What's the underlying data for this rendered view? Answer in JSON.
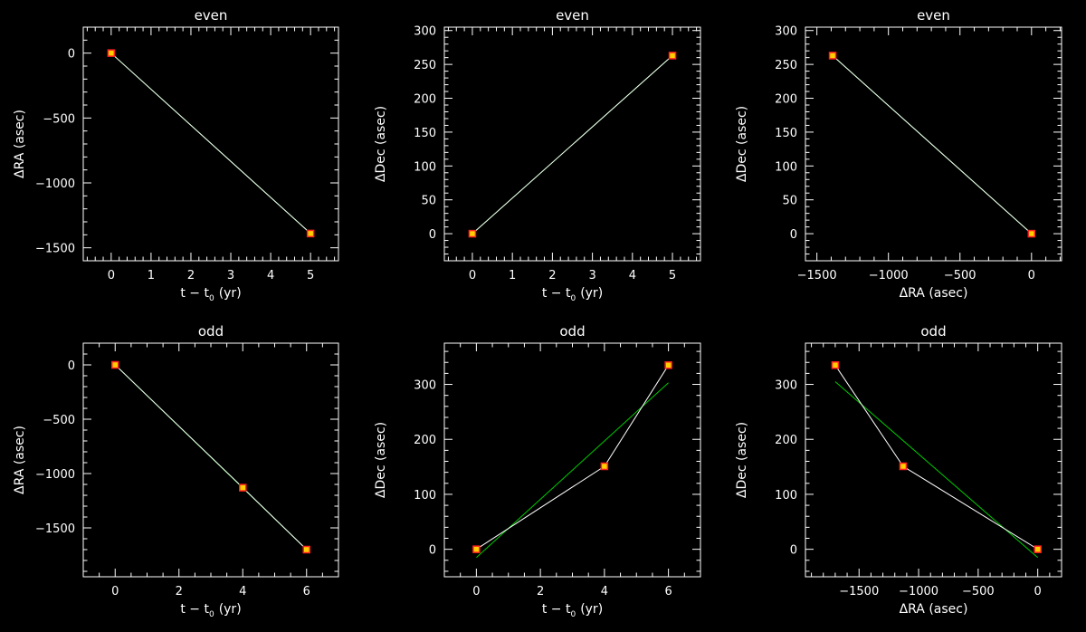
{
  "colors": {
    "background": "#000000",
    "axes": "#ffffff",
    "fit_line": "#00c800",
    "data_line": "#ffffff",
    "marker_edge": "#ff2020",
    "marker_fill": "#ffd000"
  },
  "chart_data": [
    {
      "id": "even-ra-time",
      "type": "line",
      "title": "even",
      "xlabel": "t − t",
      "xlabel_sub": "0",
      "xlabel_unit": "(yr)",
      "ylabel": "ΔRA (asec)",
      "xlim": [
        -0.7,
        5.7
      ],
      "ylim": [
        -1600,
        200
      ],
      "xticks": [
        0,
        1,
        2,
        3,
        4,
        5
      ],
      "yticks": [
        -1500,
        -1000,
        -500,
        0
      ],
      "xtick_labels": [
        "0",
        "1",
        "2",
        "3",
        "4",
        "5"
      ],
      "ytick_labels": [
        "−1500",
        "−1000",
        "−500",
        "0"
      ],
      "xminor": 5,
      "yminor": 5,
      "series": [
        {
          "style": "fit",
          "x": [
            0,
            5
          ],
          "y": [
            0,
            -1390
          ]
        },
        {
          "style": "data",
          "x": [
            0,
            5
          ],
          "y": [
            0,
            -1390
          ]
        }
      ]
    },
    {
      "id": "even-dec-time",
      "type": "line",
      "title": "even",
      "xlabel": "t − t",
      "xlabel_sub": "0",
      "xlabel_unit": "(yr)",
      "ylabel": "ΔDec (asec)",
      "xlim": [
        -0.7,
        5.7
      ],
      "ylim": [
        -40,
        305
      ],
      "xticks": [
        0,
        1,
        2,
        3,
        4,
        5
      ],
      "yticks": [
        0,
        50,
        100,
        150,
        200,
        250,
        300
      ],
      "xtick_labels": [
        "0",
        "1",
        "2",
        "3",
        "4",
        "5"
      ],
      "ytick_labels": [
        "0",
        "50",
        "100",
        "150",
        "200",
        "250",
        "300"
      ],
      "xminor": 5,
      "yminor": 5,
      "series": [
        {
          "style": "fit",
          "x": [
            0,
            5
          ],
          "y": [
            0,
            263
          ]
        },
        {
          "style": "data",
          "x": [
            0,
            5
          ],
          "y": [
            0,
            263
          ]
        }
      ]
    },
    {
      "id": "even-dec-ra",
      "type": "line",
      "title": "even",
      "xlabel": "ΔRA (asec)",
      "xlabel_sub": "",
      "xlabel_unit": "",
      "ylabel": "ΔDec (asec)",
      "xlim": [
        -1580,
        210
      ],
      "ylim": [
        -40,
        305
      ],
      "xticks": [
        -1500,
        -1000,
        -500,
        0
      ],
      "yticks": [
        0,
        50,
        100,
        150,
        200,
        250,
        300
      ],
      "xtick_labels": [
        "−1500",
        "−1000",
        "−500",
        "0"
      ],
      "ytick_labels": [
        "0",
        "50",
        "100",
        "150",
        "200",
        "250",
        "300"
      ],
      "xminor": 5,
      "yminor": 5,
      "series": [
        {
          "style": "fit",
          "x": [
            -1390,
            0
          ],
          "y": [
            263,
            0
          ]
        },
        {
          "style": "data",
          "x": [
            -1390,
            0
          ],
          "y": [
            263,
            0
          ]
        }
      ]
    },
    {
      "id": "odd-ra-time",
      "type": "line",
      "title": "odd",
      "xlabel": "t − t",
      "xlabel_sub": "0",
      "xlabel_unit": "(yr)",
      "ylabel": "ΔRA (asec)",
      "xlim": [
        -1,
        7
      ],
      "ylim": [
        -1950,
        200
      ],
      "xticks": [
        0,
        2,
        4,
        6
      ],
      "yticks": [
        -1500,
        -1000,
        -500,
        0
      ],
      "xtick_labels": [
        "0",
        "2",
        "4",
        "6"
      ],
      "ytick_labels": [
        "−1500",
        "−1000",
        "−500",
        "0"
      ],
      "xminor": 4,
      "yminor": 5,
      "series": [
        {
          "style": "fit",
          "x": [
            0,
            6
          ],
          "y": [
            0,
            -1700
          ]
        },
        {
          "style": "data",
          "x": [
            0,
            4,
            6
          ],
          "y": [
            0,
            -1130,
            -1700
          ]
        }
      ]
    },
    {
      "id": "odd-dec-time",
      "type": "line",
      "title": "odd",
      "xlabel": "t − t",
      "xlabel_sub": "0",
      "xlabel_unit": "(yr)",
      "ylabel": "ΔDec (asec)",
      "xlim": [
        -1,
        7
      ],
      "ylim": [
        -50,
        375
      ],
      "xticks": [
        0,
        2,
        4,
        6
      ],
      "yticks": [
        0,
        100,
        200,
        300
      ],
      "xtick_labels": [
        "0",
        "2",
        "4",
        "6"
      ],
      "ytick_labels": [
        "0",
        "100",
        "200",
        "300"
      ],
      "xminor": 4,
      "yminor": 5,
      "series": [
        {
          "style": "fit",
          "x": [
            0,
            6
          ],
          "y": [
            -15,
            303
          ]
        },
        {
          "style": "data",
          "x": [
            0,
            4,
            6
          ],
          "y": [
            0,
            151,
            335
          ]
        }
      ]
    },
    {
      "id": "odd-dec-ra",
      "type": "line",
      "title": "odd",
      "xlabel": "ΔRA (asec)",
      "xlabel_sub": "",
      "xlabel_unit": "",
      "ylabel": "ΔDec (asec)",
      "xlim": [
        -1950,
        200
      ],
      "ylim": [
        -50,
        375
      ],
      "xticks": [
        -1500,
        -1000,
        -500,
        0
      ],
      "yticks": [
        0,
        100,
        200,
        300
      ],
      "xtick_labels": [
        "−1500",
        "−1000",
        "−500",
        "0"
      ],
      "ytick_labels": [
        "0",
        "100",
        "200",
        "300"
      ],
      "xminor": 5,
      "yminor": 5,
      "series": [
        {
          "style": "fit",
          "x": [
            -1700,
            0
          ],
          "y": [
            305,
            -15
          ]
        },
        {
          "style": "data",
          "x": [
            -1700,
            -1130,
            0
          ],
          "y": [
            335,
            151,
            0
          ]
        }
      ]
    }
  ]
}
